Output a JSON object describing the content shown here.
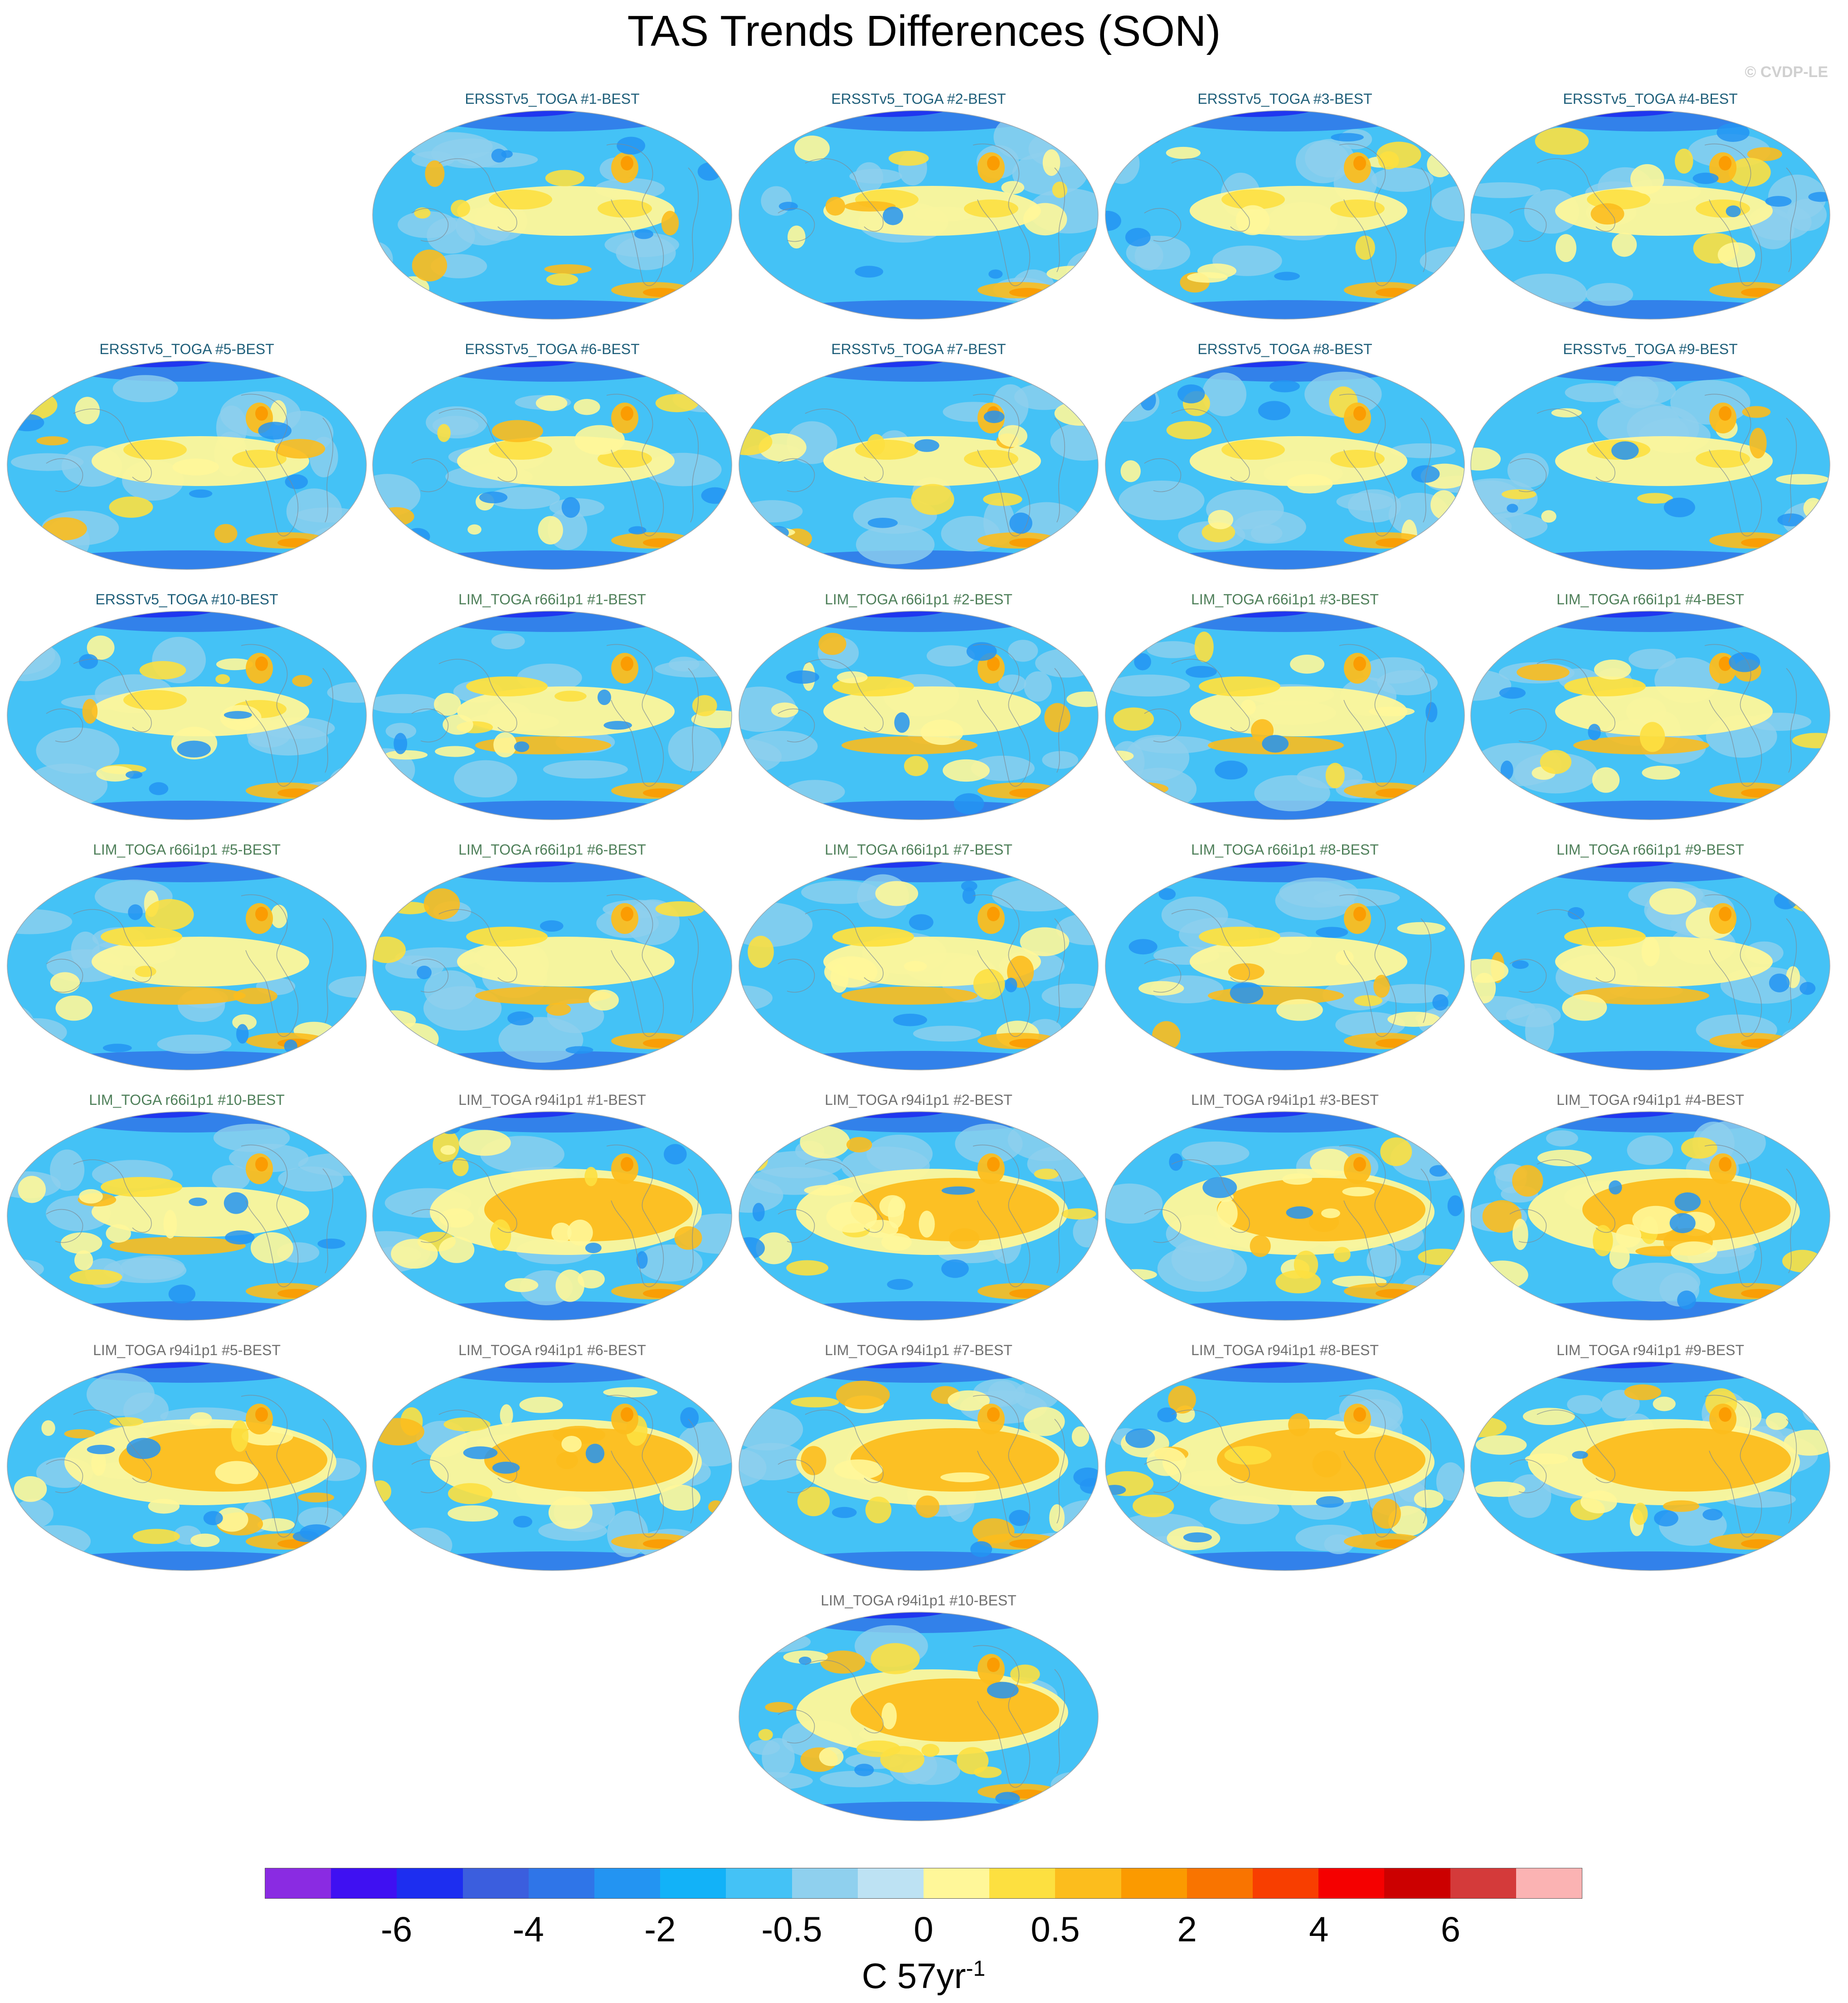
{
  "title": "TAS Trends Differences (SON)",
  "credit": "© CVDP-LE",
  "panels": [
    {
      "label": "ERSSTv5_TOGA #1-BEST",
      "group": "ersst"
    },
    {
      "label": "ERSSTv5_TOGA #2-BEST",
      "group": "ersst"
    },
    {
      "label": "ERSSTv5_TOGA #3-BEST",
      "group": "ersst"
    },
    {
      "label": "ERSSTv5_TOGA #4-BEST",
      "group": "ersst"
    },
    {
      "label": "ERSSTv5_TOGA #5-BEST",
      "group": "ersst"
    },
    {
      "label": "ERSSTv5_TOGA #6-BEST",
      "group": "ersst"
    },
    {
      "label": "ERSSTv5_TOGA #7-BEST",
      "group": "ersst"
    },
    {
      "label": "ERSSTv5_TOGA #8-BEST",
      "group": "ersst"
    },
    {
      "label": "ERSSTv5_TOGA #9-BEST",
      "group": "ersst"
    },
    {
      "label": "ERSSTv5_TOGA #10-BEST",
      "group": "ersst"
    },
    {
      "label": "LIM_TOGA r66i1p1 #1-BEST",
      "group": "r66"
    },
    {
      "label": "LIM_TOGA r66i1p1 #2-BEST",
      "group": "r66"
    },
    {
      "label": "LIM_TOGA r66i1p1 #3-BEST",
      "group": "r66"
    },
    {
      "label": "LIM_TOGA r66i1p1 #4-BEST",
      "group": "r66"
    },
    {
      "label": "LIM_TOGA r66i1p1 #5-BEST",
      "group": "r66"
    },
    {
      "label": "LIM_TOGA r66i1p1 #6-BEST",
      "group": "r66"
    },
    {
      "label": "LIM_TOGA r66i1p1 #7-BEST",
      "group": "r66"
    },
    {
      "label": "LIM_TOGA r66i1p1 #8-BEST",
      "group": "r66"
    },
    {
      "label": "LIM_TOGA r66i1p1 #9-BEST",
      "group": "r66"
    },
    {
      "label": "LIM_TOGA r66i1p1 #10-BEST",
      "group": "r66"
    },
    {
      "label": "LIM_TOGA r94i1p1 #1-BEST",
      "group": "r94"
    },
    {
      "label": "LIM_TOGA r94i1p1 #2-BEST",
      "group": "r94"
    },
    {
      "label": "LIM_TOGA r94i1p1 #3-BEST",
      "group": "r94"
    },
    {
      "label": "LIM_TOGA r94i1p1 #4-BEST",
      "group": "r94"
    },
    {
      "label": "LIM_TOGA r94i1p1 #5-BEST",
      "group": "r94"
    },
    {
      "label": "LIM_TOGA r94i1p1 #6-BEST",
      "group": "r94"
    },
    {
      "label": "LIM_TOGA r94i1p1 #7-BEST",
      "group": "r94"
    },
    {
      "label": "LIM_TOGA r94i1p1 #8-BEST",
      "group": "r94"
    },
    {
      "label": "LIM_TOGA r94i1p1 #9-BEST",
      "group": "r94"
    },
    {
      "label": "LIM_TOGA r94i1p1 #10-BEST",
      "group": "r94"
    }
  ],
  "colorbar": {
    "colors": [
      "#8a2be2",
      "#3f10f2",
      "#1d2ef0",
      "#3b5ede",
      "#2f75e8",
      "#2394f2",
      "#12b2f8",
      "#44c2f6",
      "#8fd0ee",
      "#bde2f3",
      "#fff799",
      "#fde040",
      "#fcbd1d",
      "#fb9a00",
      "#f97400",
      "#f83e00",
      "#f50000",
      "#cc0000",
      "#d43a3a",
      "#fbb3b3"
    ],
    "tick_labels": [
      "-6",
      "-4",
      "-2",
      "-0.5",
      "0",
      "0.5",
      "2",
      "4",
      "6"
    ],
    "units_base": "C 57yr",
    "units_exp": "-1"
  }
}
